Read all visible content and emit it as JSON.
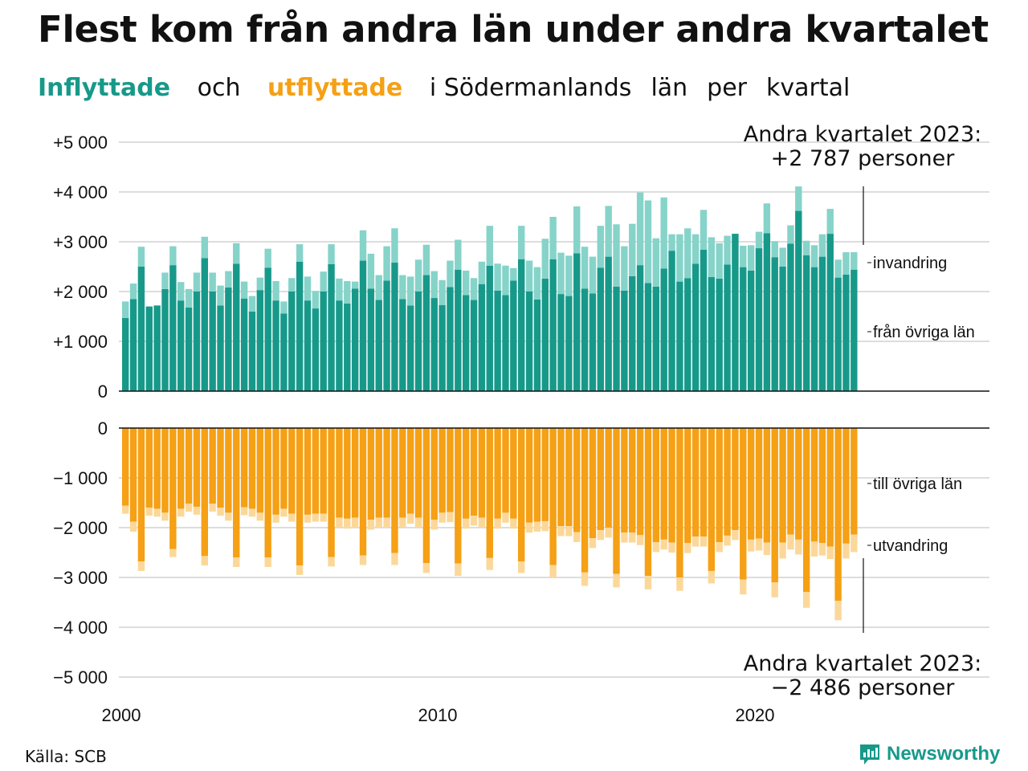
{
  "title": "Flest kom från andra län under andra kvartalet",
  "subtitle": {
    "part1": "Inflyttade",
    "part2": "och",
    "part3": "utflyttade",
    "part4": "i Södermanlands",
    "part5": "län",
    "part6": "per",
    "part7": "kvartal"
  },
  "source": "Källa: SCB",
  "brand": "Newsworthy",
  "colors": {
    "in_domestic": "#17998a",
    "in_immigration": "#86d3c9",
    "out_domestic": "#f5a015",
    "out_emigration": "#fbd89a"
  },
  "chart_data": {
    "type": "bar",
    "stacked": true,
    "x_start": "2000 Q1",
    "x_end": "2023 Q2",
    "xticks": [
      "2000",
      "2010",
      "2020"
    ],
    "ylim": [
      -5000,
      5000
    ],
    "yticks_in": [
      "+5 000",
      "+4 000",
      "+3 000",
      "+2 000",
      "+1 000",
      "0"
    ],
    "yticks_out": [
      "0",
      "−1 000",
      "−2 000",
      "−3 000",
      "−4 000",
      "−5 000"
    ],
    "series": [
      {
        "name": "från övriga län",
        "values": [
          1470,
          1850,
          2500,
          1700,
          1720,
          2050,
          2530,
          1820,
          1680,
          2000,
          2670,
          2000,
          1720,
          2080,
          2560,
          1860,
          1600,
          2030,
          2480,
          1820,
          1560,
          2000,
          2600,
          1820,
          1660,
          2000,
          2550,
          1820,
          1760,
          2060,
          2620,
          2060,
          1830,
          2220,
          2580,
          1850,
          1720,
          2000,
          2330,
          1870,
          1730,
          2090,
          2440,
          1930,
          1830,
          2150,
          2520,
          2020,
          1930,
          2220,
          2650,
          2000,
          1840,
          2260,
          2650,
          1950,
          1910,
          2770,
          2060,
          1960,
          2480,
          2700,
          2100,
          2020,
          2310,
          2530,
          2170,
          2100,
          2460,
          2820,
          2200,
          2270,
          2560,
          2840,
          2290,
          2260,
          2540,
          3160,
          2490,
          2420,
          2870,
          3170,
          2690,
          2500,
          2960,
          3620,
          2730,
          2490,
          2700,
          3160,
          2280,
          2340,
          2440
        ]
      },
      {
        "name": "invandring",
        "values": [
          330,
          310,
          400,
          0,
          0,
          330,
          380,
          370,
          370,
          380,
          430,
          380,
          400,
          330,
          410,
          340,
          310,
          250,
          380,
          390,
          240,
          270,
          350,
          480,
          350,
          400,
          400,
          440,
          450,
          140,
          610,
          700,
          500,
          690,
          690,
          480,
          580,
          640,
          610,
          540,
          500,
          530,
          600,
          490,
          440,
          450,
          800,
          540,
          590,
          250,
          670,
          620,
          650,
          800,
          850,
          830,
          810,
          940,
          840,
          740,
          840,
          1020,
          1250,
          890,
          1050,
          1460,
          1660,
          970,
          1430,
          330,
          950,
          1000,
          590,
          800,
          800,
          710,
          580,
          0,
          430,
          510,
          330,
          600,
          320,
          380,
          370,
          490,
          290,
          440,
          450,
          500,
          360,
          450,
          350
        ]
      },
      {
        "name": "till övriga län",
        "values": [
          -1560,
          -1880,
          -2680,
          -1600,
          -1620,
          -1700,
          -2430,
          -1620,
          -1520,
          -1580,
          -2570,
          -1520,
          -1600,
          -1700,
          -2600,
          -1590,
          -1620,
          -1700,
          -2600,
          -1740,
          -1620,
          -1720,
          -2760,
          -1740,
          -1720,
          -1720,
          -2590,
          -1800,
          -1820,
          -1800,
          -2560,
          -1840,
          -1800,
          -1800,
          -2510,
          -1800,
          -1720,
          -1800,
          -2710,
          -1840,
          -1700,
          -1690,
          -2720,
          -1820,
          -1760,
          -1800,
          -2610,
          -1820,
          -1700,
          -1820,
          -2680,
          -1900,
          -1880,
          -1870,
          -2750,
          -1970,
          -1970,
          -2090,
          -2900,
          -2210,
          -2050,
          -2000,
          -2930,
          -2100,
          -2100,
          -2150,
          -2970,
          -2290,
          -2240,
          -2300,
          -3000,
          -2310,
          -2180,
          -2180,
          -2870,
          -2290,
          -2160,
          -2050,
          -3040,
          -2240,
          -2220,
          -2300,
          -3100,
          -2300,
          -2140,
          -2240,
          -3290,
          -2280,
          -2310,
          -2380,
          -3470,
          -2320,
          -2140
        ]
      },
      {
        "name": "utvandring",
        "values": [
          -160,
          -200,
          -190,
          -160,
          -160,
          -160,
          -160,
          -160,
          -160,
          -160,
          -190,
          -160,
          -160,
          -160,
          -190,
          -160,
          -160,
          -160,
          -190,
          -160,
          -160,
          -160,
          -190,
          -160,
          -160,
          -160,
          -190,
          -200,
          -200,
          -200,
          -190,
          -200,
          -200,
          -200,
          -240,
          -200,
          -200,
          -200,
          -200,
          -200,
          -200,
          -200,
          -250,
          -200,
          -200,
          -200,
          -240,
          -200,
          -200,
          -200,
          -230,
          -200,
          -200,
          -200,
          -250,
          -200,
          -200,
          -200,
          -270,
          -200,
          -200,
          -200,
          -270,
          -200,
          -200,
          -200,
          -270,
          -200,
          -200,
          -200,
          -270,
          -200,
          -200,
          -200,
          -250,
          -200,
          -200,
          -200,
          -300,
          -240,
          -240,
          -250,
          -300,
          -320,
          -300,
          -300,
          -320,
          -300,
          -250,
          -250,
          -390,
          -300,
          -350
        ]
      }
    ],
    "annotations": {
      "top_line1": "Andra kvartalet 2023:",
      "top_line2": "+2 787 personer",
      "bottom_line1": "Andra kvartalet 2023:",
      "bottom_line2": "−2 486 personer",
      "label_in_immigration": "invandring",
      "label_in_domestic": "från övriga län",
      "label_out_domestic": "till övriga län",
      "label_out_emigration": "utvandring"
    }
  }
}
